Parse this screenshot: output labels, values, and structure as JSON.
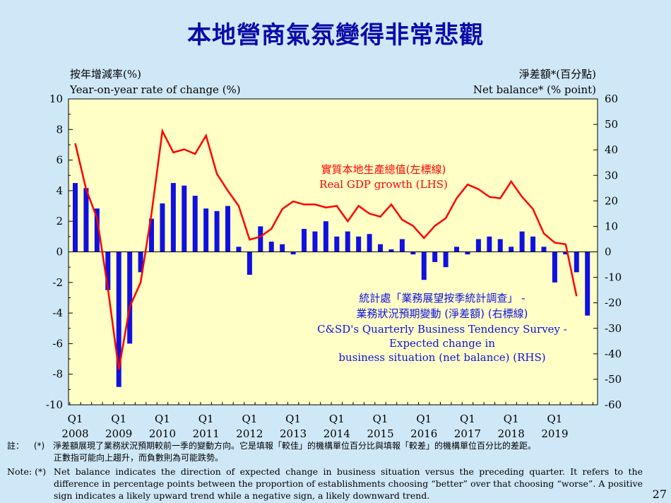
{
  "title": "本地營商氣氛變得非常悲觀",
  "left_axis": {
    "label_cn": "按年增減率(%)",
    "label_en": "Year-on-year rate of change (%)"
  },
  "right_axis": {
    "label_cn": "淨差額*(百分點)",
    "label_en": "Net balance* (% point)"
  },
  "chart_data": {
    "type": "bar+line",
    "x_tick_labels": [
      {
        "q": "Q1",
        "year": "2008"
      },
      {
        "q": "Q1",
        "year": "2009"
      },
      {
        "q": "Q1",
        "year": "2010"
      },
      {
        "q": "Q1",
        "year": "2011"
      },
      {
        "q": "Q1",
        "year": "2012"
      },
      {
        "q": "Q1",
        "year": "2013"
      },
      {
        "q": "Q1",
        "year": "2014"
      },
      {
        "q": "Q1",
        "year": "2015"
      },
      {
        "q": "Q1",
        "year": "2016"
      },
      {
        "q": "Q1",
        "year": "2017"
      },
      {
        "q": "Q1",
        "year": "2018"
      },
      {
        "q": "Q1",
        "year": "2019"
      }
    ],
    "y_left": {
      "min": -10,
      "max": 10,
      "ticks": [
        10,
        8,
        6,
        4,
        2,
        0,
        -2,
        -4,
        -6,
        -8,
        -10
      ]
    },
    "y_right": {
      "min": -60,
      "max": 60,
      "ticks": [
        60,
        50,
        40,
        30,
        20,
        10,
        0,
        -10,
        -20,
        -30,
        -40,
        -50,
        -60
      ]
    },
    "series": [
      {
        "name": "Real GDP growth (LHS)",
        "axis": "left",
        "color": "#ff0000",
        "values": [
          7.1,
          4.1,
          2.2,
          -2.4,
          -7.7,
          -3.6,
          -2.0,
          2.5,
          7.9,
          6.5,
          6.7,
          6.4,
          7.6,
          5.1,
          4.0,
          3.0,
          0.8,
          1.0,
          1.5,
          2.8,
          3.3,
          3.1,
          3.1,
          2.9,
          3.0,
          2.0,
          3.0,
          2.5,
          2.3,
          3.1,
          2.1,
          1.7,
          0.9,
          1.7,
          2.2,
          3.5,
          4.4,
          4.1,
          3.6,
          3.5,
          4.6,
          3.6,
          2.8,
          1.2,
          0.6,
          0.5,
          -2.9
        ]
      },
      {
        "name": "C&SD's Quarterly Business Tendency Survey - Expected change in business situation (net balance) (RHS)",
        "axis": "right",
        "color": "#1010e0",
        "values": [
          27,
          25,
          17,
          -15,
          -53,
          -36,
          -8,
          13,
          19,
          27,
          26,
          22,
          17,
          16,
          18,
          2,
          -9,
          10,
          4,
          3,
          -1,
          9,
          8,
          12,
          6,
          8,
          6,
          7,
          3,
          1,
          5,
          -1,
          -11,
          -4,
          -6,
          2,
          -1,
          5,
          6,
          5,
          2,
          8,
          6,
          2,
          -12,
          -1,
          -8,
          -25
        ]
      }
    ],
    "annotation_gdp_cn": "實質本地生產總值(左標線)",
    "annotation_gdp_en": "Real GDP growth (LHS)",
    "annotation_survey_cn1": "統計處「業務展望按季統計調查」 -",
    "annotation_survey_cn2": "業務狀況預期變動 (淨差額) (右標線)",
    "annotation_survey_en1": "C&SD's Quarterly Business Tendency Survey -",
    "annotation_survey_en2": "Expected change in",
    "annotation_survey_en3": "business situation (net balance) (RHS)"
  },
  "notes": {
    "cn_label": "註：",
    "cn_star": "(*)",
    "cn_line1": "淨差額展現了業務狀況預期較前一季的變動方向。它是填報「較佳」的機構單位百分比與填報「較差」的機構單位百分比的差距。",
    "cn_line2": "正數指可能向上趨升，而負數則為可能跌勢。",
    "en_label": "Note:",
    "en_star": "(*)",
    "en_text": "Net balance indicates the direction of expected change in business situation versus the preceding quarter. It refers to the difference in percentage points between the proportion of establishments choosing “better” over that choosing “worse”. A positive sign indicates a likely upward trend while a negative sign, a likely downward trend."
  },
  "page_number": "27"
}
